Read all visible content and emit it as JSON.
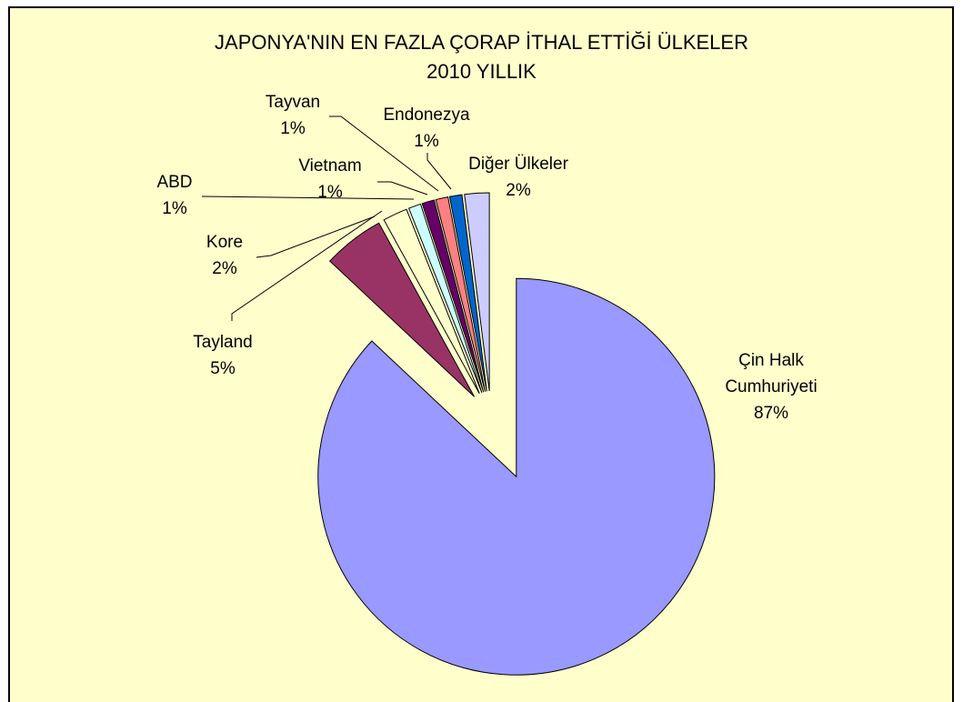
{
  "chart_data": {
    "type": "pie",
    "title": "JAPONYA'NIN EN FAZLA ÇORAP İTHAL ETTİĞİ ÜLKELER",
    "subtitle": "2010 YILLIK",
    "categories": [
      "Çin Halk Cumhuriyeti",
      "Tayland",
      "Kore",
      "ABD",
      "Vietnam",
      "Tayvan",
      "Endonezya",
      "Diğer Ülkeler"
    ],
    "values": [
      87,
      5,
      2,
      1,
      1,
      1,
      1,
      2
    ],
    "value_labels": [
      "87%",
      "5%",
      "2%",
      "1%",
      "1%",
      "1%",
      "1%",
      "2%"
    ],
    "colors": [
      "#9999ff",
      "#993366",
      "#ffffcc",
      "#ccffff",
      "#660066",
      "#ff8080",
      "#0066cc",
      "#ccccff"
    ]
  }
}
